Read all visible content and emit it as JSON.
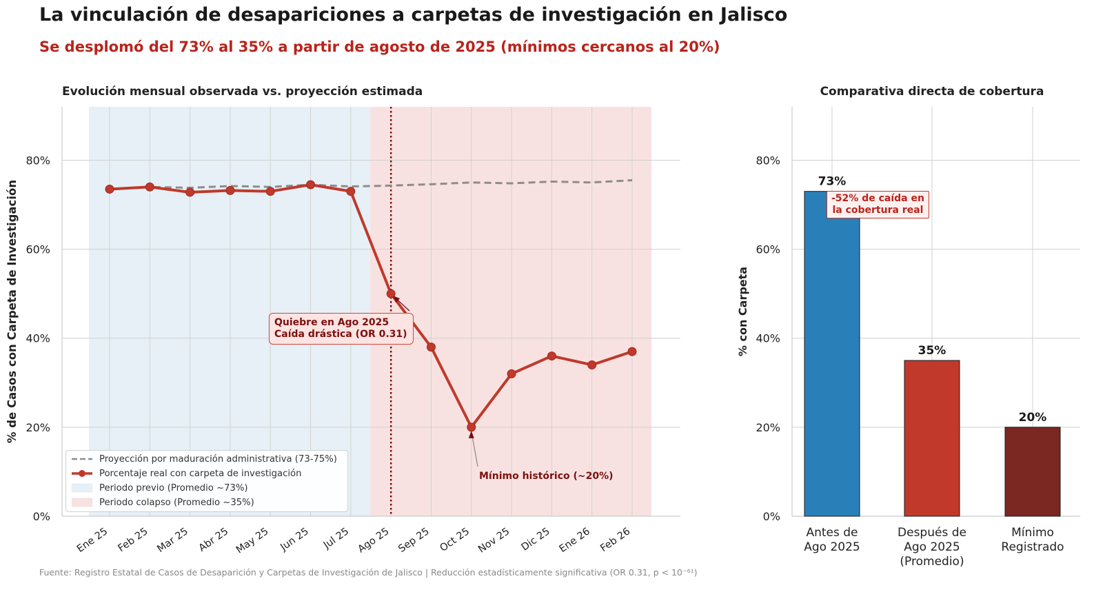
{
  "title": "La vinculación de desapariciones a carpetas de investigación en Jalisco",
  "subtitle": "Se desplomó del 73% al 35% a partir de agosto de 2025 (mínimos cercanos al 20%)",
  "footer": "Fuente: Registro Estatal de Casos de Desaparición y Carpetas de Investigación de Jalisco | Reducción estadísticamente significativa (OR 0.31, p < 10⁻⁶¹)",
  "colors": {
    "observed": "#c0392b",
    "projection": "#8c8c8c",
    "pre_period": "#e6f0f6",
    "collapse_period": "#f8e2e1",
    "bar_before": "#2980b9",
    "bar_after": "#c0392b",
    "bar_min": "#7b2722"
  },
  "chart_data": [
    {
      "type": "line",
      "title": "Evolución mensual observada vs. proyección estimada",
      "ylabel": "% de Casos con Carpeta de Investigación",
      "xlabel": "",
      "ylim": [
        0,
        92
      ],
      "yticks": [
        "0%",
        "20%",
        "40%",
        "60%",
        "80%"
      ],
      "categories": [
        "Ene 25",
        "Feb 25",
        "Mar 25",
        "Abr 25",
        "May 25",
        "Jun 25",
        "Jul 25",
        "Ago 25",
        "Sep 25",
        "Oct 25",
        "Nov 25",
        "Dic 25",
        "Ene 26",
        "Feb 26"
      ],
      "series": [
        {
          "name": "Proyección por maduración administrativa (73-75%)",
          "style": "dashed",
          "values": [
            73.5,
            74.0,
            73.8,
            74.2,
            74.0,
            74.5,
            74.1,
            74.3,
            74.6,
            75.0,
            74.8,
            75.2,
            75.0,
            75.5
          ]
        },
        {
          "name": "Porcentaje real con carpeta de investigación",
          "style": "solid-markers",
          "values": [
            73.5,
            74.0,
            72.8,
            73.2,
            73.0,
            74.5,
            73.0,
            50.0,
            38.0,
            20.0,
            32.0,
            36.0,
            34.0,
            37.0
          ]
        }
      ],
      "shaded_regions": [
        {
          "name": "Periodo previo (Promedio ~73%)",
          "from": "Ene 25",
          "to": "Jul 25"
        },
        {
          "name": "Periodo colapso (Promedio ~35%)",
          "from": "Ago 25",
          "to": "Feb 26"
        }
      ],
      "vertical_line_at": "Ago 25",
      "annotations": [
        {
          "text": "Quiebre en Ago 2025\nCaída drástica (OR 0.31)",
          "points_to": "Ago 25"
        },
        {
          "text": "Mínimo histórico (~20%)",
          "points_to": "Oct 25"
        }
      ],
      "legend_position": "lower-left",
      "grid": true
    },
    {
      "type": "bar",
      "title": "Comparativa directa de cobertura",
      "ylabel": "% con Carpeta",
      "ylim": [
        0,
        92
      ],
      "yticks": [
        "0%",
        "20%",
        "40%",
        "60%",
        "80%"
      ],
      "categories": [
        "Antes de\nAgo 2025",
        "Después de\nAgo 2025\n(Promedio)",
        "Mínimo\nRegistrado"
      ],
      "values": [
        73,
        35,
        20
      ],
      "value_labels": [
        "73%",
        "35%",
        "20%"
      ],
      "annotation": "-52% de caída en\nla cobertura real",
      "grid": true
    }
  ]
}
